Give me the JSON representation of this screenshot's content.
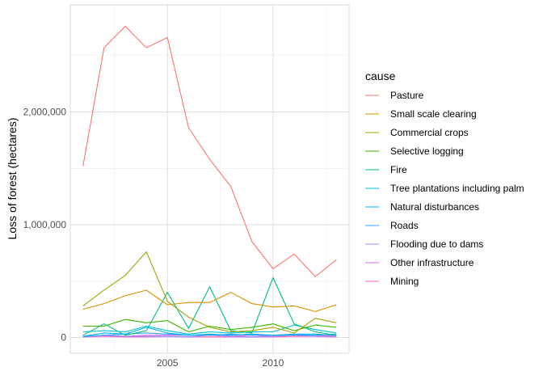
{
  "chart_data": {
    "type": "line",
    "title": "",
    "xlabel": "",
    "ylabel": "Loss of forest (hectares)",
    "legend_title": "cause",
    "legend_position": "right",
    "grid": true,
    "xlim": [
      2000.4,
      2013.6
    ],
    "ylim": [
      -140000,
      2950000
    ],
    "x_ticks": [
      2005,
      2010
    ],
    "x_tick_labels": [
      "2005",
      "2010"
    ],
    "y_ticks": [
      0,
      1000000,
      2000000
    ],
    "y_tick_labels": [
      "0",
      "1,000,000",
      "2,000,000"
    ],
    "x": [
      2001,
      2002,
      2003,
      2004,
      2005,
      2006,
      2007,
      2008,
      2009,
      2010,
      2011,
      2012,
      2013
    ],
    "series": [
      {
        "name": "Pasture",
        "color": "#F8766D",
        "values": [
          1520000,
          2570000,
          2760000,
          2570000,
          2660000,
          1860000,
          1580000,
          1340000,
          850000,
          610000,
          740000,
          540000,
          690000
        ]
      },
      {
        "name": "Small scale clearing",
        "color": "#D89000",
        "values": [
          250000,
          300000,
          370000,
          420000,
          290000,
          310000,
          310000,
          400000,
          300000,
          270000,
          280000,
          230000,
          290000
        ]
      },
      {
        "name": "Commercial crops",
        "color": "#A3A500",
        "values": [
          280000,
          420000,
          550000,
          760000,
          320000,
          180000,
          90000,
          50000,
          60000,
          90000,
          40000,
          170000,
          130000
        ]
      },
      {
        "name": "Selective logging",
        "color": "#39B600",
        "values": [
          100000,
          100000,
          160000,
          130000,
          150000,
          50000,
          100000,
          70000,
          90000,
          120000,
          60000,
          110000,
          90000
        ]
      },
      {
        "name": "Fire",
        "color": "#00BF7D",
        "values": [
          20000,
          120000,
          20000,
          60000,
          400000,
          80000,
          450000,
          60000,
          40000,
          530000,
          120000,
          50000,
          20000
        ]
      },
      {
        "name": "Tree plantations including palm",
        "color": "#00BFC4",
        "values": [
          50000,
          60000,
          50000,
          100000,
          60000,
          30000,
          50000,
          40000,
          50000,
          50000,
          110000,
          70000,
          40000
        ]
      },
      {
        "name": "Natural disturbances",
        "color": "#00B0F6",
        "values": [
          10000,
          40000,
          30000,
          90000,
          40000,
          20000,
          30000,
          20000,
          30000,
          20000,
          30000,
          30000,
          20000
        ]
      },
      {
        "name": "Roads",
        "color": "#35A2FF",
        "values": [
          10000,
          20000,
          30000,
          40000,
          30000,
          20000,
          20000,
          30000,
          20000,
          20000,
          20000,
          20000,
          30000
        ]
      },
      {
        "name": "Flooding due to dams",
        "color": "#9590FF",
        "values": [
          5000,
          20000,
          10000,
          10000,
          10000,
          5000,
          20000,
          10000,
          5000,
          10000,
          20000,
          10000,
          10000
        ]
      },
      {
        "name": "Other infrastructure",
        "color": "#E76BF3",
        "values": [
          10000,
          15000,
          10000,
          20000,
          20000,
          20000,
          20000,
          10000,
          20000,
          10000,
          30000,
          15000,
          20000
        ]
      },
      {
        "name": "Mining",
        "color": "#FF62BC",
        "values": [
          5000,
          10000,
          5000,
          5000,
          10000,
          5000,
          5000,
          5000,
          5000,
          5000,
          10000,
          10000,
          5000
        ]
      }
    ]
  }
}
